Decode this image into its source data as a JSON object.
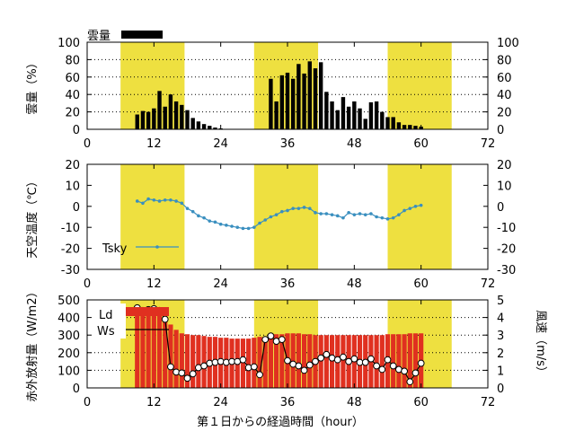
{
  "chart_data": [
    {
      "type": "bar",
      "legend": {
        "label": "雲量",
        "color": "#000000"
      },
      "ylabel": "雲量（%）",
      "xlim": [
        0,
        72
      ],
      "ylim": [
        0,
        100
      ],
      "xticks": [
        0,
        12,
        24,
        36,
        48,
        60,
        72
      ],
      "yticks": [
        0,
        20,
        40,
        60,
        80,
        100
      ],
      "y2ticks": [
        0,
        20,
        40,
        60,
        80,
        100
      ],
      "daylight_bands": [
        [
          6,
          17.5
        ],
        [
          30,
          41.5
        ],
        [
          54,
          65.5
        ]
      ],
      "band_color": "#eee040",
      "x": [
        9,
        10,
        11,
        12,
        13,
        14,
        15,
        16,
        17,
        18,
        19,
        20,
        21,
        22,
        23,
        24,
        33,
        34,
        35,
        36,
        37,
        38,
        39,
        40,
        41,
        42,
        43,
        44,
        45,
        46,
        47,
        48,
        49,
        50,
        51,
        52,
        53,
        54,
        55,
        56,
        57,
        58,
        59,
        60
      ],
      "values": [
        17,
        21,
        20,
        24,
        44,
        26,
        40,
        32,
        28,
        22,
        13,
        9,
        6,
        4,
        2,
        1,
        58,
        32,
        62,
        65,
        58,
        75,
        64,
        78,
        70,
        77,
        43,
        32,
        22,
        37,
        26,
        32,
        24,
        12,
        31,
        32,
        20,
        14,
        14,
        8,
        5,
        5,
        4,
        3
      ]
    },
    {
      "type": "line",
      "ylabel": "天空温度（℃）",
      "xlim": [
        0,
        72
      ],
      "ylim": [
        -30,
        20
      ],
      "xticks": [
        0,
        12,
        24,
        36,
        48,
        60,
        72
      ],
      "yticks": [
        -30,
        -20,
        -10,
        0,
        10,
        20
      ],
      "y2ticks": [
        -30,
        -20,
        -10,
        0,
        10,
        20
      ],
      "daylight_bands": [
        [
          6,
          17.5
        ],
        [
          30,
          41.5
        ],
        [
          54,
          65.5
        ]
      ],
      "series": [
        {
          "name": "Tsky",
          "color": "#3a8fbf",
          "x": [
            9,
            10,
            11,
            12,
            13,
            14,
            15,
            16,
            17,
            18,
            19,
            20,
            21,
            22,
            23,
            24,
            25,
            26,
            27,
            28,
            29,
            30,
            31,
            32,
            33,
            34,
            35,
            36,
            37,
            38,
            39,
            40,
            41,
            42,
            43,
            44,
            45,
            46,
            47,
            48,
            49,
            50,
            51,
            52,
            53,
            54,
            55,
            56,
            57,
            58,
            59,
            60
          ],
          "values": [
            2.5,
            1.5,
            3.5,
            3,
            2.5,
            3,
            3,
            2.5,
            1.5,
            -1,
            -2.5,
            -4.5,
            -5.5,
            -7,
            -7.5,
            -8.5,
            -9,
            -9.5,
            -10,
            -10.5,
            -10.5,
            -10,
            -8,
            -6.5,
            -5,
            -4,
            -2.5,
            -2,
            -1,
            -1,
            -0.5,
            -1,
            -3,
            -3.5,
            -3.5,
            -4,
            -4.5,
            -5.5,
            -3,
            -4,
            -3.5,
            -4,
            -3.5,
            -5,
            -5.5,
            -6,
            -5.5,
            -4,
            -2,
            -1,
            0,
            0.5
          ]
        }
      ]
    },
    {
      "type": "bar",
      "ylabel": "赤外放射量（W/m2）",
      "xlabel": "第１日からの経過時間（hour）",
      "y2label": "風速（m/s）",
      "xlim": [
        0,
        72
      ],
      "ylim": [
        0,
        500
      ],
      "y2lim": [
        0,
        5
      ],
      "xticks": [
        0,
        12,
        24,
        36,
        48,
        60,
        72
      ],
      "yticks": [
        0,
        100,
        200,
        300,
        400,
        500
      ],
      "y2ticks": [
        0,
        1,
        2,
        3,
        4,
        5
      ],
      "daylight_bands": [
        [
          6,
          17.5
        ],
        [
          30,
          41.5
        ],
        [
          54,
          65.5
        ]
      ],
      "series": [
        {
          "name": "Ld",
          "color": "#e03020",
          "x": [
            9,
            10,
            11,
            12,
            13,
            14,
            15,
            16,
            17,
            18,
            19,
            20,
            21,
            22,
            23,
            24,
            25,
            26,
            27,
            28,
            29,
            30,
            31,
            32,
            33,
            34,
            35,
            36,
            37,
            38,
            39,
            40,
            41,
            42,
            43,
            44,
            45,
            46,
            47,
            48,
            49,
            50,
            51,
            52,
            53,
            54,
            55,
            56,
            57,
            58,
            59,
            60
          ],
          "values": [
            445,
            445,
            445,
            440,
            420,
            390,
            360,
            330,
            310,
            305,
            300,
            300,
            295,
            290,
            290,
            285,
            285,
            280,
            280,
            280,
            280,
            285,
            290,
            290,
            300,
            305,
            305,
            310,
            310,
            310,
            305,
            305,
            300,
            300,
            300,
            300,
            300,
            300,
            300,
            300,
            300,
            300,
            300,
            300,
            300,
            305,
            305,
            305,
            305,
            310,
            310,
            310
          ]
        },
        {
          "name": "Ws",
          "axis": "right",
          "color": "#000000",
          "x": [
            9,
            10,
            11,
            12,
            13,
            14,
            15,
            16,
            17,
            18,
            19,
            20,
            21,
            22,
            23,
            24,
            25,
            26,
            27,
            28,
            29,
            30,
            31,
            32,
            33,
            34,
            35,
            36,
            37,
            38,
            39,
            40,
            41,
            42,
            43,
            44,
            45,
            46,
            47,
            48,
            49,
            50,
            51,
            52,
            53,
            54,
            55,
            56,
            57,
            58,
            59,
            60
          ],
          "values": [
            4.55,
            4.4,
            4.45,
            4.5,
            4.4,
            3.9,
            1.2,
            0.9,
            0.85,
            0.55,
            0.8,
            1.15,
            1.25,
            1.4,
            1.45,
            1.5,
            1.45,
            1.5,
            1.5,
            1.6,
            1.15,
            1.2,
            0.75,
            2.75,
            2.95,
            2.65,
            2.75,
            1.55,
            1.35,
            1.25,
            1.0,
            1.3,
            1.5,
            1.7,
            1.9,
            1.7,
            1.6,
            1.75,
            1.5,
            1.65,
            1.45,
            1.45,
            1.65,
            1.25,
            1.05,
            1.6,
            1.25,
            1.05,
            0.95,
            0.35,
            0.85,
            1.4
          ]
        }
      ]
    }
  ]
}
